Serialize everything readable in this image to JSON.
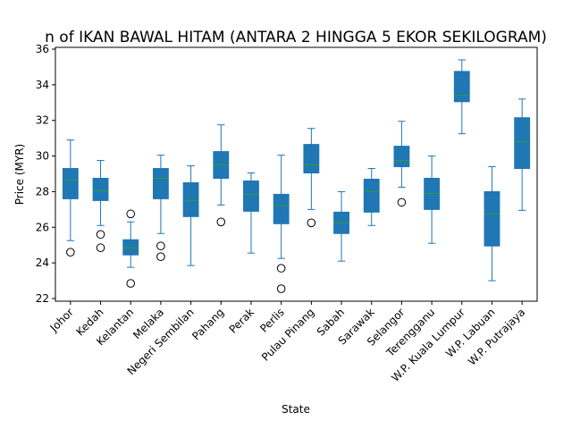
{
  "chart_data": {
    "type": "boxplot",
    "title": "n of IKAN BAWAL HITAM (ANTARA 2 HINGGA 5 EKOR SEKILOGRAM)",
    "xlabel": "State",
    "ylabel": "Price (MYR)",
    "ylim": [
      21.85,
      36.1
    ],
    "yticks": [
      22,
      24,
      26,
      28,
      30,
      32,
      34,
      36
    ],
    "grid": false,
    "colors": {
      "box": "#1f77b4",
      "median": "#2ca02c",
      "whisker": "#1f77b4",
      "outlier": "#000000"
    },
    "categories": [
      "Johor",
      "Kedah",
      "Kelantan",
      "Melaka",
      "Negeri Sembilan",
      "Pahang",
      "Perak",
      "Perlis",
      "Pulau Pinang",
      "Sabah",
      "Sarawak",
      "Selangor",
      "Terengganu",
      "W.P. Kuala Lumpur",
      "W.P. Labuan",
      "W.P. Putrajaya"
    ],
    "boxes": [
      {
        "whislo": 25.25,
        "q1": 27.6,
        "med": 28.65,
        "q3": 29.3,
        "whishi": 30.9,
        "fliers": [
          24.6
        ]
      },
      {
        "whislo": 26.1,
        "q1": 27.5,
        "med": 28.05,
        "q3": 28.75,
        "whishi": 29.75,
        "fliers": [
          25.6,
          24.85
        ]
      },
      {
        "whislo": 23.75,
        "q1": 24.45,
        "med": 24.85,
        "q3": 25.3,
        "whishi": 26.3,
        "fliers": [
          26.75,
          22.85
        ]
      },
      {
        "whislo": 25.65,
        "q1": 27.6,
        "med": 28.75,
        "q3": 29.3,
        "whishi": 30.05,
        "fliers": [
          24.95,
          24.35
        ]
      },
      {
        "whislo": 23.85,
        "q1": 26.6,
        "med": 27.5,
        "q3": 28.5,
        "whishi": 29.45,
        "fliers": []
      },
      {
        "whislo": 27.25,
        "q1": 28.75,
        "med": 29.5,
        "q3": 30.25,
        "whishi": 31.75,
        "fliers": [
          26.3
        ]
      },
      {
        "whislo": 24.55,
        "q1": 26.9,
        "med": 27.85,
        "q3": 28.6,
        "whishi": 29.05,
        "fliers": []
      },
      {
        "whislo": 24.25,
        "q1": 26.2,
        "med": 27.2,
        "q3": 27.85,
        "whishi": 30.05,
        "fliers": [
          23.7,
          22.55
        ]
      },
      {
        "whislo": 27.0,
        "q1": 29.05,
        "med": 29.5,
        "q3": 30.65,
        "whishi": 31.55,
        "fliers": [
          26.25
        ]
      },
      {
        "whislo": 24.1,
        "q1": 25.65,
        "med": 26.25,
        "q3": 26.85,
        "whishi": 28.0,
        "fliers": []
      },
      {
        "whislo": 26.1,
        "q1": 26.85,
        "med": 28.0,
        "q3": 28.7,
        "whishi": 29.3,
        "fliers": []
      },
      {
        "whislo": 28.25,
        "q1": 29.4,
        "med": 29.75,
        "q3": 30.55,
        "whishi": 31.95,
        "fliers": [
          27.4
        ]
      },
      {
        "whislo": 25.1,
        "q1": 27.0,
        "med": 27.9,
        "q3": 28.75,
        "whishi": 30.0,
        "fliers": []
      },
      {
        "whislo": 31.25,
        "q1": 33.05,
        "med": 33.4,
        "q3": 34.75,
        "whishi": 35.4,
        "fliers": []
      },
      {
        "whislo": 23.0,
        "q1": 24.95,
        "med": 26.75,
        "q3": 28.0,
        "whishi": 29.4,
        "fliers": []
      },
      {
        "whislo": 26.95,
        "q1": 29.3,
        "med": 30.8,
        "q3": 32.15,
        "whishi": 33.2,
        "fliers": []
      }
    ]
  }
}
